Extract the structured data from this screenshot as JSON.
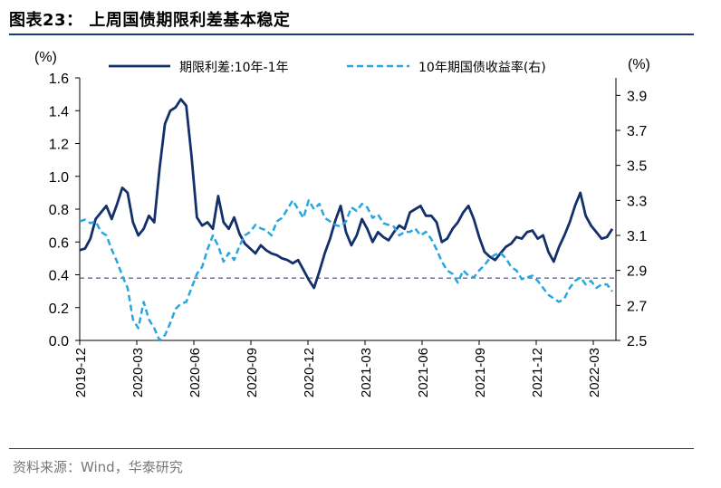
{
  "title": "图表23：  上周国债期限利差基本稳定",
  "source": "资料来源：Wind，华泰研究",
  "colors": {
    "spread": "#13306b",
    "yield": "#28a7df",
    "reference": "#1a3a7a"
  },
  "chart_data": {
    "type": "line",
    "left_unit": "(%)",
    "right_unit": "(%)",
    "left_ylim": [
      0.0,
      1.6
    ],
    "right_ylim": [
      2.5,
      4.0
    ],
    "left_ticks": [
      "0.0",
      "0.2",
      "0.4",
      "0.6",
      "0.8",
      "1.0",
      "1.2",
      "1.4",
      "1.6"
    ],
    "right_ticks": [
      "2.5",
      "2.7",
      "2.9",
      "3.1",
      "3.3",
      "3.5",
      "3.7",
      "3.9"
    ],
    "x_tick_labels": [
      "2019-12",
      "2020-03",
      "2020-06",
      "2020-09",
      "2020-12",
      "2021-03",
      "2021-06",
      "2021-09",
      "2021-12",
      "2022-03"
    ],
    "reference_line": 0.38,
    "series": [
      {
        "name": "期限利差:10年-1年",
        "axis": "left",
        "style": "solid",
        "values": [
          0.55,
          0.56,
          0.62,
          0.74,
          0.78,
          0.82,
          0.74,
          0.83,
          0.93,
          0.9,
          0.72,
          0.64,
          0.68,
          0.76,
          0.72,
          1.05,
          1.32,
          1.4,
          1.42,
          1.47,
          1.43,
          1.12,
          0.75,
          0.7,
          0.72,
          0.68,
          0.88,
          0.72,
          0.68,
          0.75,
          0.65,
          0.59,
          0.56,
          0.53,
          0.58,
          0.55,
          0.53,
          0.52,
          0.5,
          0.49,
          0.47,
          0.49,
          0.43,
          0.37,
          0.32,
          0.42,
          0.53,
          0.62,
          0.73,
          0.82,
          0.66,
          0.58,
          0.64,
          0.74,
          0.68,
          0.6,
          0.66,
          0.63,
          0.61,
          0.66,
          0.7,
          0.68,
          0.78,
          0.8,
          0.82,
          0.76,
          0.76,
          0.72,
          0.6,
          0.62,
          0.68,
          0.72,
          0.78,
          0.82,
          0.74,
          0.63,
          0.54,
          0.51,
          0.49,
          0.53,
          0.57,
          0.59,
          0.63,
          0.62,
          0.66,
          0.67,
          0.62,
          0.64,
          0.54,
          0.48,
          0.57,
          0.64,
          0.72,
          0.82,
          0.9,
          0.76,
          0.7,
          0.66,
          0.62,
          0.63,
          0.68
        ]
      },
      {
        "name": "10年期国债收益率(右)",
        "axis": "right",
        "style": "dashed",
        "values": [
          3.18,
          3.19,
          3.17,
          3.18,
          3.12,
          3.1,
          3.02,
          2.95,
          2.87,
          2.8,
          2.62,
          2.57,
          2.72,
          2.62,
          2.57,
          2.5,
          2.53,
          2.6,
          2.68,
          2.71,
          2.72,
          2.8,
          2.88,
          2.92,
          3.02,
          3.1,
          3.04,
          2.95,
          3.0,
          2.96,
          3.04,
          3.1,
          3.12,
          3.16,
          3.14,
          3.13,
          3.1,
          3.18,
          3.2,
          3.25,
          3.3,
          3.25,
          3.2,
          3.3,
          3.25,
          3.28,
          3.2,
          3.18,
          3.16,
          3.15,
          3.18,
          3.26,
          3.24,
          3.28,
          3.26,
          3.2,
          3.22,
          3.17,
          3.16,
          3.15,
          3.1,
          3.12,
          3.12,
          3.14,
          3.1,
          3.12,
          3.08,
          3.02,
          2.95,
          2.9,
          2.88,
          2.83,
          2.9,
          2.87,
          2.86,
          2.9,
          2.93,
          2.97,
          2.99,
          3.0,
          2.97,
          2.92,
          2.9,
          2.85,
          2.86,
          2.87,
          2.84,
          2.8,
          2.76,
          2.74,
          2.72,
          2.74,
          2.8,
          2.84,
          2.86,
          2.82,
          2.84,
          2.8,
          2.82,
          2.82,
          2.78
        ]
      }
    ]
  }
}
